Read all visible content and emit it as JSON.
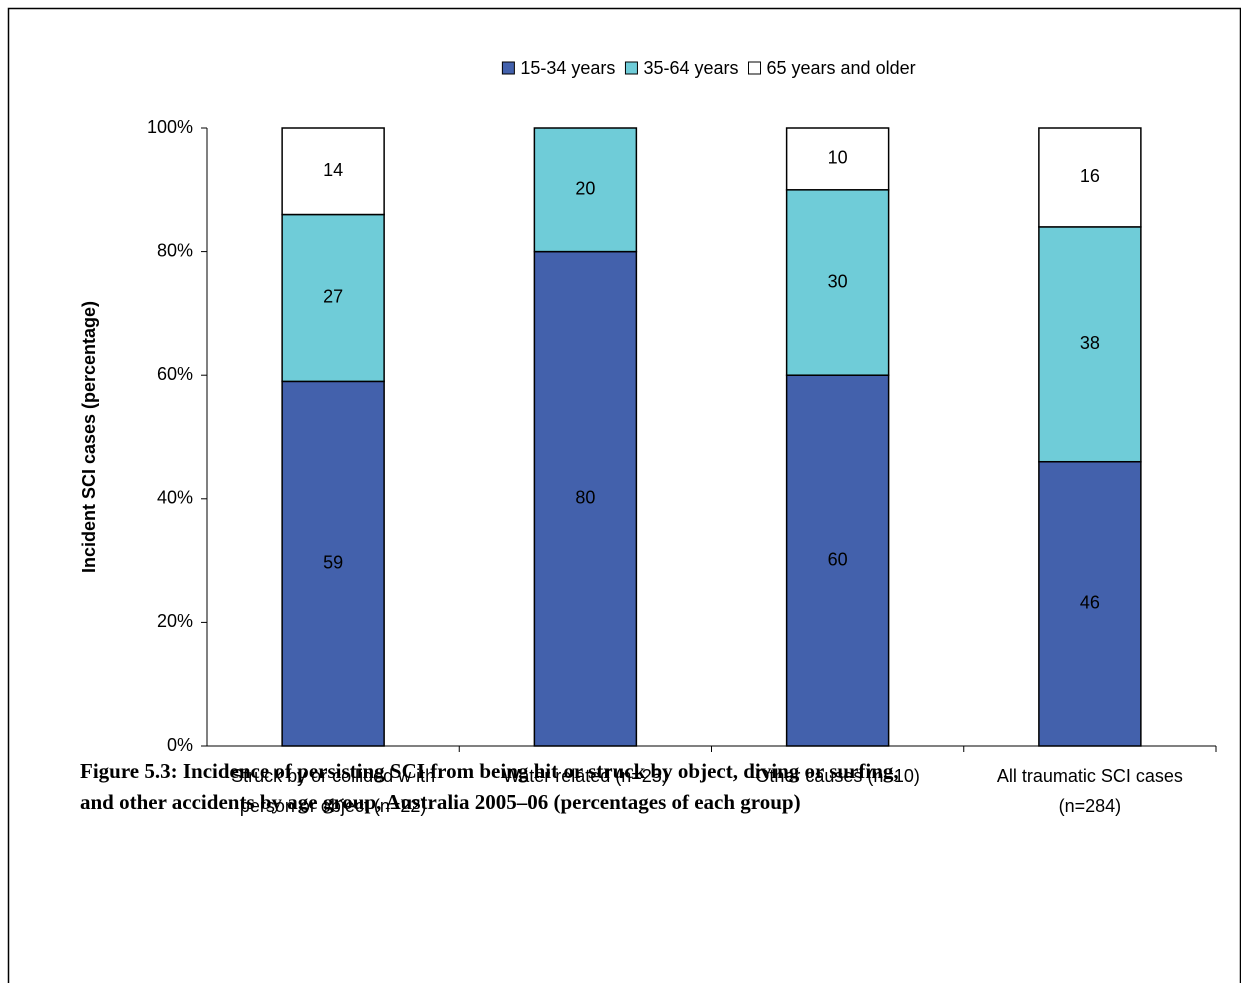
{
  "chart_data": {
    "type": "stacked_bar",
    "caption": [
      "Figure 5.3: Incidence of persisting SCI from being hit or struck by object, diving or surfing,",
      "and other accidents by age group, Australia 2005–06 (percentages of each group)"
    ],
    "y_label": "Incident SCI cases (percentage)",
    "categories": [
      [
        "Struck by or collided w ith",
        "person or object (n=22)"
      ],
      [
        "Water related (n=25)"
      ],
      [
        "Other causes (n=10)"
      ],
      [
        "All traumatic SCI cases",
        "(n=284)"
      ]
    ],
    "series": [
      {
        "name": "15-34 years",
        "color": "#4361ac",
        "values": [
          59,
          80,
          60,
          46
        ]
      },
      {
        "name": "35-64 years",
        "color": "#6fccd8",
        "values": [
          27,
          20,
          30,
          38
        ]
      },
      {
        "name": "65 years and older",
        "color": "#ffffff",
        "values": [
          14,
          0,
          10,
          16
        ]
      }
    ],
    "ylim": [
      0,
      100
    ],
    "yticks": [
      {
        "value": 0,
        "label": "0%"
      },
      {
        "value": 20,
        "label": "20%"
      },
      {
        "value": 40,
        "label": "40%"
      },
      {
        "value": 60,
        "label": "60%"
      },
      {
        "value": 80,
        "label": "80%"
      },
      {
        "value": 100,
        "label": "100%"
      }
    ],
    "legend": "top"
  }
}
